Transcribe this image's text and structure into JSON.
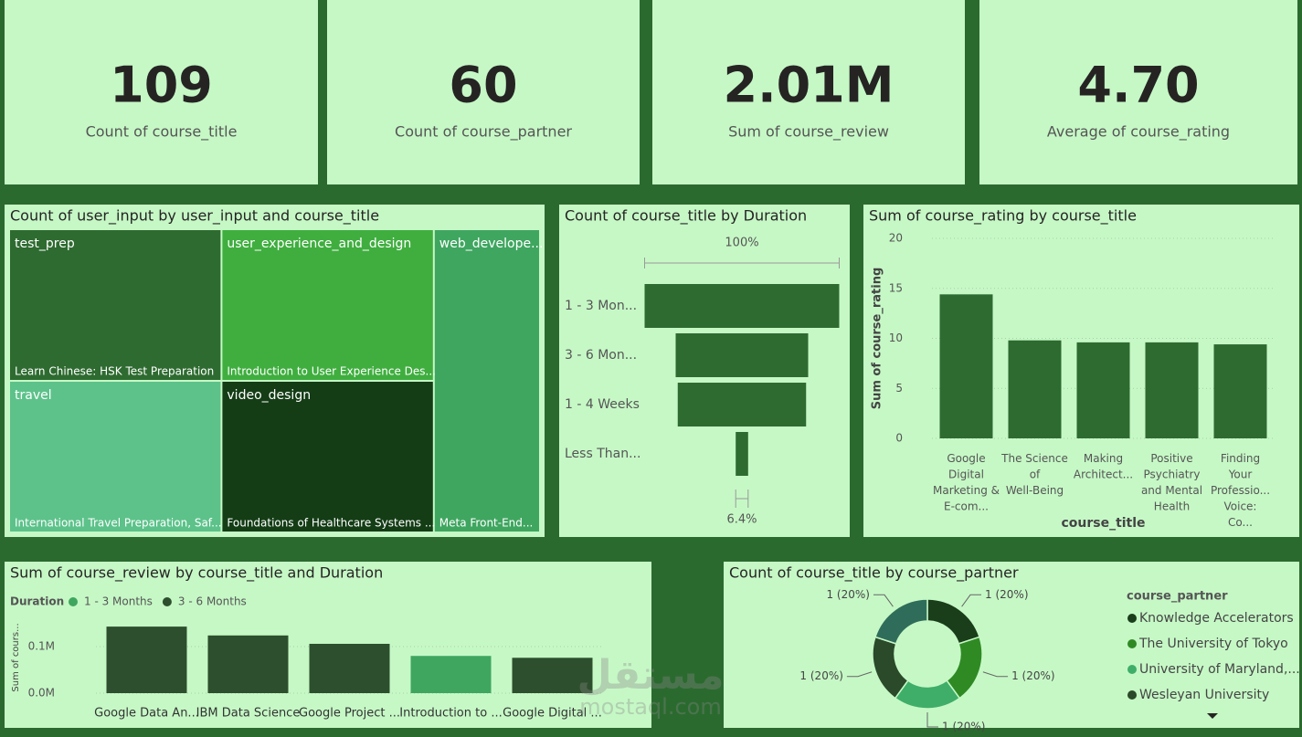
{
  "cards": [
    {
      "value": "109",
      "label": "Count of course_title"
    },
    {
      "value": "60",
      "label": "Count of course_partner"
    },
    {
      "value": "2.01M",
      "label": "Sum of course_review"
    },
    {
      "value": "4.70",
      "label": "Average of course_rating"
    }
  ],
  "chart_data": [
    {
      "type": "treemap",
      "title": "Count of user_input by user_input and course_title",
      "categories": [
        "test_prep",
        "user_experience_and_design",
        "web_develope...",
        "travel",
        "video_design"
      ],
      "children": [
        "Learn Chinese: HSK Test Preparation",
        "Introduction to User Experience Des...",
        "Meta Front-End...",
        "International Travel Preparation, Saf...",
        "Foundations of Healthcare Systems ..."
      ],
      "values": [
        1,
        1,
        1,
        1,
        1
      ],
      "colors": [
        "#2e6b30",
        "#3fae3f",
        "#3fa660",
        "#5cc28a",
        "#143d16"
      ]
    },
    {
      "type": "funnel",
      "title": "Count of course_title by Duration",
      "categories": [
        "1 - 3 Mon...",
        "3 - 6 Mon...",
        "1 - 4 Weeks",
        "Less Than..."
      ],
      "values": [
        47,
        32,
        31,
        3
      ],
      "color": "#2e6b30",
      "top_label": "100%",
      "bottom_label": "6.4%"
    },
    {
      "type": "bar",
      "title": "Sum of course_rating by course_title",
      "categories": [
        "Google Digital Marketing & E-com...",
        "The Science of Well-Being",
        "Making Architect...",
        "Positive Psychiatry and Mental Health",
        "Finding Your Professio... Voice: Co..."
      ],
      "values": [
        14.4,
        9.8,
        9.6,
        9.6,
        9.4
      ],
      "color": "#2e6b30",
      "ylim": [
        0,
        20
      ],
      "yticks": [
        0,
        5,
        10,
        15,
        20
      ],
      "grid": true,
      "xlabel": "course_title",
      "ylabel": "Sum of course_rating"
    },
    {
      "type": "bar",
      "title": "Sum of course_review by course_title and Duration",
      "legend_title": "Duration",
      "categories": [
        "Google Data An...",
        "IBM Data Science",
        "Google Project ...",
        "Introduction to ...",
        "Google Digital ..."
      ],
      "series": [
        {
          "name": "1 - 3 Months",
          "color": "#3fa660",
          "values": [
            null,
            null,
            null,
            80000,
            null
          ]
        },
        {
          "name": "3 - 6 Months",
          "color": "#2d4f2d",
          "values": [
            143000,
            124000,
            106000,
            null,
            76000
          ]
        }
      ],
      "ylim": [
        0,
        155000
      ],
      "yticks": [
        {
          "value": 0,
          "label": "0.0M"
        },
        {
          "value": 100000,
          "label": "0.1M"
        }
      ],
      "grid": true,
      "ylabel": "Sum of cours..."
    },
    {
      "type": "pie",
      "title": "Count of course_title by course_partner",
      "donut": true,
      "legend_title": "course_partner",
      "categories": [
        "Knowledge Accelerators",
        "The University of Tokyo",
        "University of Maryland,...",
        "Wesleyan University",
        null
      ],
      "values": [
        20,
        20,
        20,
        20,
        20
      ],
      "value_labels": [
        "1 (20%)",
        "1 (20%)",
        "1 (20%)",
        "1 (20%)",
        "1 (20%)"
      ],
      "colors": [
        "#1a3d1a",
        "#2f8a24",
        "#3fae68",
        "#2a4a2a",
        "#2f6d5a"
      ]
    }
  ],
  "watermark": [
    "مستقل",
    "mostaql.com"
  ]
}
